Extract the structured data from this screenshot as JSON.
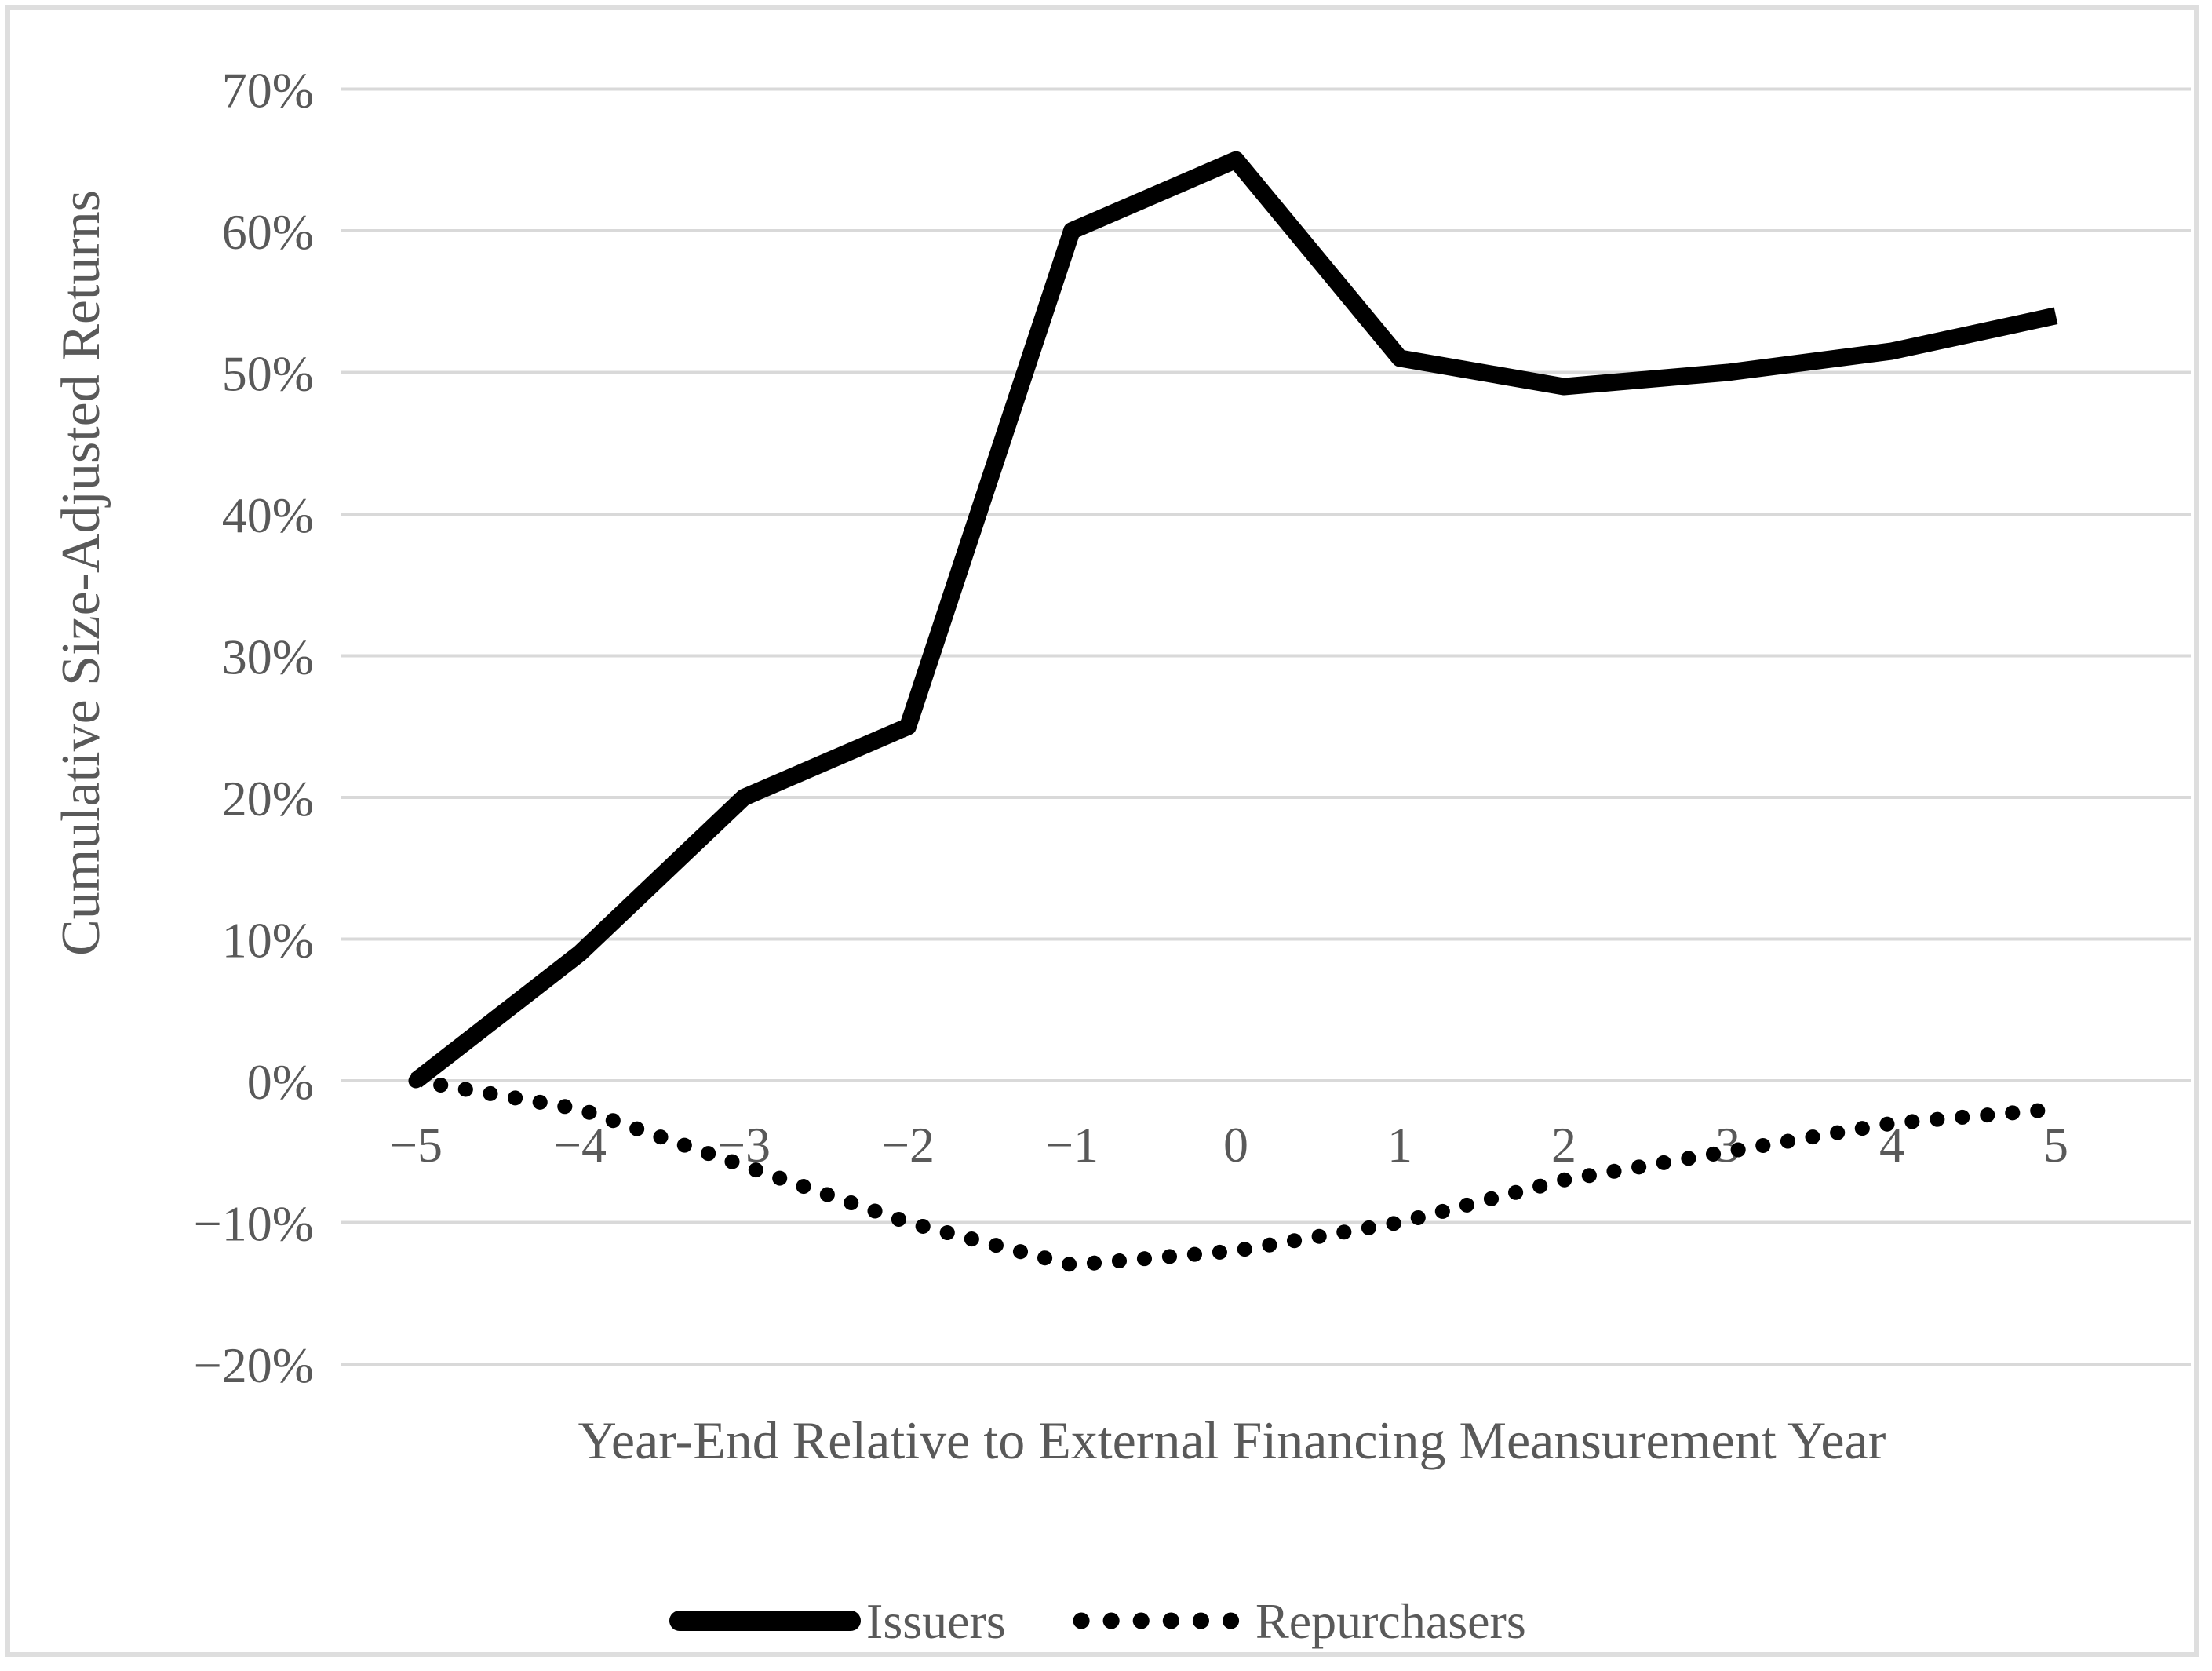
{
  "chart_data": {
    "type": "line",
    "title": "",
    "xlabel": "Year-End Relative to External Financing Meansurement Year",
    "ylabel": "Cumulative Size-Adjusted Returns",
    "x": [
      -5,
      -4,
      -3,
      -2,
      -1,
      0,
      1,
      2,
      3,
      4,
      5
    ],
    "x_tick_labels": [
      "−5",
      "−4",
      "−3",
      "−2",
      "−1",
      "0",
      "1",
      "2",
      "3",
      "4",
      "5"
    ],
    "y_tick_values": [
      70,
      60,
      50,
      40,
      30,
      20,
      10,
      0,
      -10,
      -20
    ],
    "y_tick_labels": [
      "70%",
      "60%",
      "50%",
      "40%",
      "30%",
      "20%",
      "10%",
      "0%",
      "−10%",
      "−20%"
    ],
    "ylim": [
      -20,
      70
    ],
    "grid": "horizontal-only",
    "legend_position": "bottom-center",
    "series": [
      {
        "name": "Issuers",
        "style": "solid",
        "color": "#000000",
        "values": [
          0,
          9,
          20,
          25,
          60,
          65,
          51,
          49,
          50,
          51.5,
          54
        ]
      },
      {
        "name": "Repurchasers",
        "style": "dotted",
        "color": "#000000",
        "values": [
          0,
          -2,
          -6,
          -10,
          -13,
          -12,
          -10,
          -7,
          -5,
          -3,
          -2
        ]
      }
    ],
    "colors": {
      "background": "#ffffff",
      "border": "#dedede",
      "gridline": "#d9d9d9",
      "text": "#595959",
      "line": "#000000"
    }
  }
}
